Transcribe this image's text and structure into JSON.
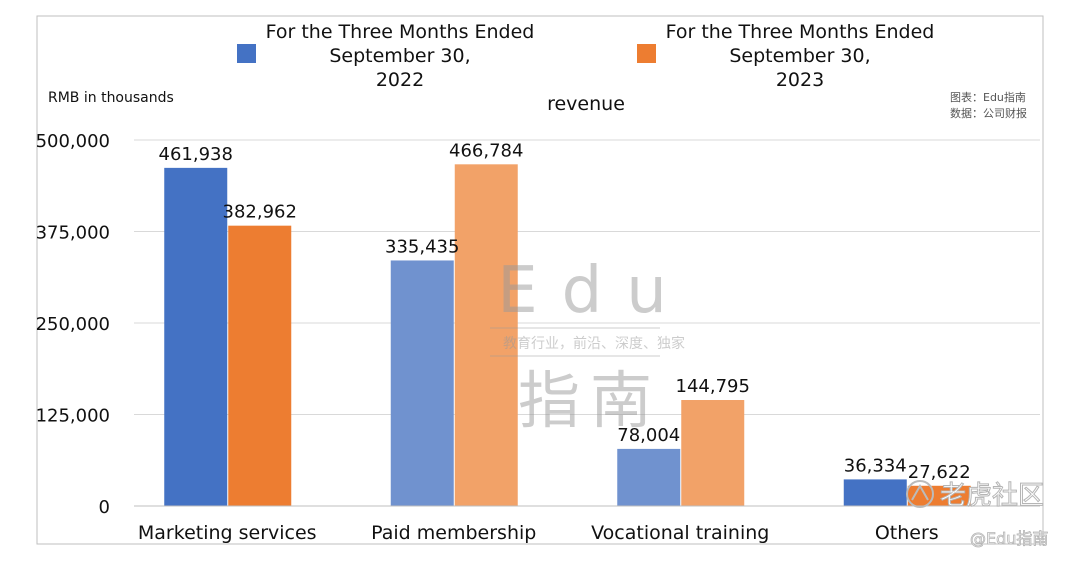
{
  "chart_data": {
    "type": "bar",
    "title": "revenue",
    "ylabel": "RMB in thousands",
    "categories": [
      "Marketing services",
      "Paid membership",
      "Vocational training",
      "Others"
    ],
    "series": [
      {
        "name": "For the Three Months Ended September 30, 2022",
        "name_lines": [
          "For the Three Months Ended",
          "September 30,",
          "2022"
        ],
        "color": "#4472C4",
        "values": [
          461938,
          335435,
          78004,
          36334
        ],
        "labels": [
          "461,938",
          "335,435",
          "78,004",
          "36,334"
        ]
      },
      {
        "name": "For the Three Months Ended September 30, 2023",
        "name_lines": [
          "For the Three Months Ended",
          "September 30,",
          "2023"
        ],
        "color": "#ED7D31",
        "values": [
          382962,
          466784,
          144795,
          27622
        ],
        "labels": [
          "382,962",
          "466,784",
          "144,795",
          "27,622"
        ]
      }
    ],
    "ylim": [
      0,
      500000
    ],
    "yticks": [
      0,
      125000,
      250000,
      375000,
      500000
    ],
    "ytick_labels": [
      "0",
      "125,000",
      "250,000",
      "375,000",
      "500,000"
    ],
    "grid": true,
    "legend_position": "top"
  },
  "source_lines": [
    "图表：Edu指南",
    "数据：公司财报"
  ],
  "watermark": {
    "latin": "Edu",
    "tagline": "教育行业，前沿、深度、独家",
    "cjk": "指南",
    "corner_logo": "老虎社区",
    "corner_handle": "@Edu指南"
  },
  "colors": {
    "series_2022": "#4472C4",
    "series_2022_light": "#7092CF",
    "series_2023": "#ED7D31",
    "series_2023_light": "#F2A268",
    "grid": "#D9D9D9",
    "frame": "#BFBFBF"
  }
}
